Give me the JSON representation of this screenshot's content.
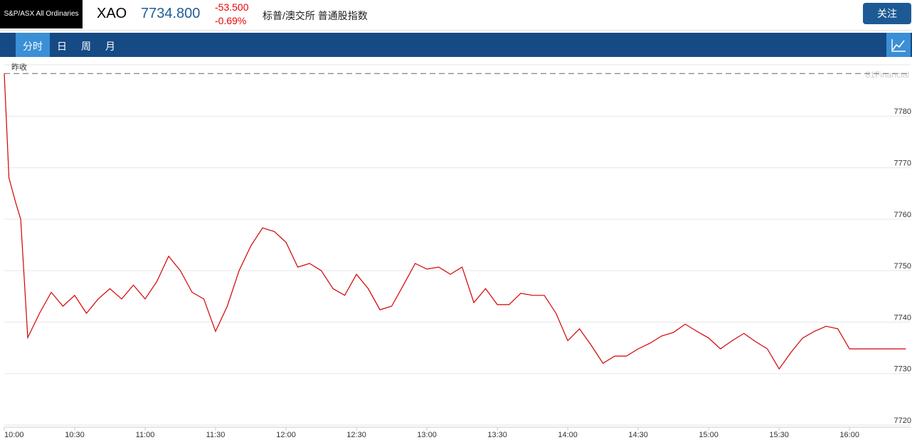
{
  "header": {
    "logo": "S&P/ASX All Ordinaries",
    "symbol": "XAO",
    "price": "7734.800",
    "change": "-53.500",
    "change_pct": "-0.69%",
    "name": "标普/澳交所 普通股指数",
    "follow_button": "关注"
  },
  "tabs": [
    "分时",
    "日",
    "周",
    "月"
  ],
  "chart_data": {
    "type": "line",
    "watermark": "81Financial",
    "color": "#d40000",
    "reference_line": {
      "label": "昨收",
      "value": 7788.3
    },
    "x": [
      "10:00",
      "10:02",
      "10:05",
      "10:07",
      "10:10",
      "10:15",
      "10:20",
      "10:25",
      "10:30",
      "10:35",
      "10:40",
      "10:45",
      "10:50",
      "10:55",
      "11:00",
      "11:05",
      "11:10",
      "11:15",
      "11:20",
      "11:25",
      "11:30",
      "11:35",
      "11:40",
      "11:45",
      "11:50",
      "11:55",
      "12:00",
      "12:05",
      "12:10",
      "12:15",
      "12:20",
      "12:25",
      "12:30",
      "12:35",
      "12:40",
      "12:45",
      "12:50",
      "12:55",
      "13:00",
      "13:05",
      "13:10",
      "13:15",
      "13:20",
      "13:25",
      "13:30",
      "13:35",
      "13:40",
      "13:45",
      "13:50",
      "13:55",
      "14:00",
      "14:05",
      "14:10",
      "14:15",
      "14:20",
      "14:25",
      "14:30",
      "14:35",
      "14:40",
      "14:45",
      "14:50",
      "14:55",
      "15:00",
      "15:05",
      "15:10",
      "15:15",
      "15:20",
      "15:25",
      "15:30",
      "15:35",
      "15:40",
      "15:45",
      "15:50",
      "15:55",
      "16:00",
      "16:05",
      "16:10",
      "16:15",
      "16:20",
      "16:24"
    ],
    "values": [
      7788.3,
      7768.0,
      7763.0,
      7760.0,
      7737.0,
      7741.7,
      7745.8,
      7743.1,
      7745.2,
      7741.7,
      7744.5,
      7746.5,
      7744.5,
      7747.2,
      7744.5,
      7747.9,
      7752.8,
      7750.0,
      7745.8,
      7744.5,
      7738.2,
      7743.1,
      7750.0,
      7754.8,
      7758.3,
      7757.6,
      7755.5,
      7750.7,
      7751.4,
      7750.0,
      7746.5,
      7745.2,
      7749.3,
      7746.5,
      7742.4,
      7743.1,
      7747.2,
      7751.4,
      7750.3,
      7750.7,
      7749.3,
      7750.7,
      7743.8,
      7746.5,
      7743.4,
      7743.4,
      7745.6,
      7745.2,
      7745.2,
      7741.7,
      7736.4,
      7738.7,
      7735.5,
      7732.0,
      7733.4,
      7733.4,
      7734.8,
      7735.9,
      7737.3,
      7738.0,
      7739.6,
      7738.2,
      7736.9,
      7734.8,
      7736.4,
      7737.8,
      7736.2,
      7734.8,
      7730.9,
      7734.1,
      7736.9,
      7738.2,
      7739.2,
      7738.7,
      7734.8,
      7734.8,
      7734.8,
      7734.8,
      7734.8,
      7734.8
    ],
    "xlim": [
      "10:00",
      "16:26"
    ],
    "xticks": [
      "10:00",
      "10:30",
      "11:00",
      "11:30",
      "12:00",
      "12:30",
      "13:00",
      "13:30",
      "14:00",
      "14:30",
      "15:00",
      "15:30",
      "16:00"
    ],
    "ylim": [
      7720,
      7790
    ],
    "yticks": [
      7720,
      7730,
      7740,
      7750,
      7760,
      7770,
      7780
    ],
    "grid": true
  }
}
